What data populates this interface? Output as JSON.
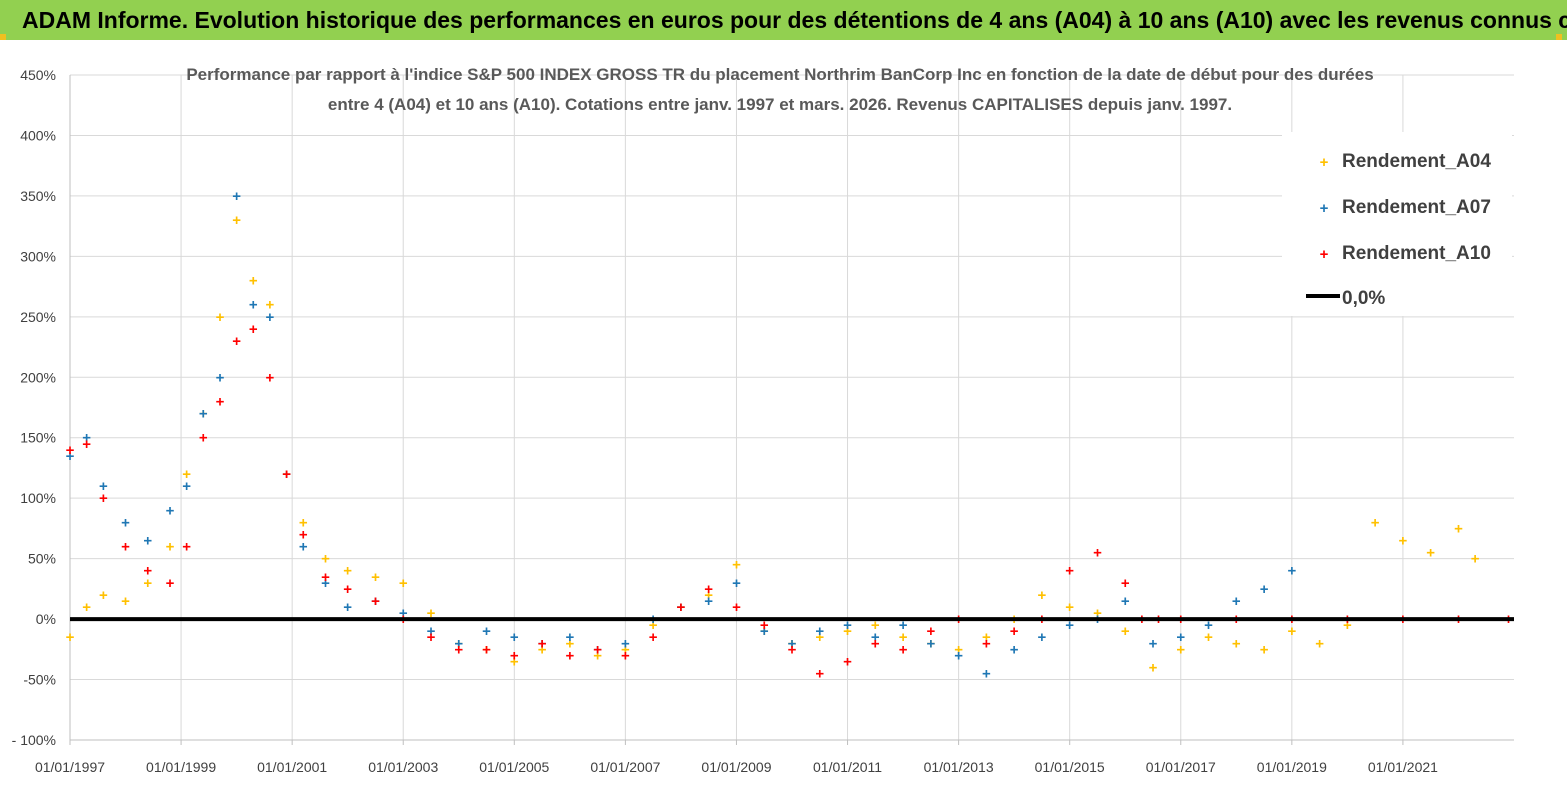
{
  "banner": {
    "title": "ADAM Informe. Evolution historique des performances en euros pour des détentions de 4 ans (A04) à 10 ans (A10) avec les revenus connus capitalisés"
  },
  "colors": {
    "banner_bg": "#92d050",
    "A04": "#ffc000",
    "A07": "#1f77b4",
    "A10": "#ff0000",
    "zero_line": "#000000"
  },
  "chart_data": {
    "type": "scatter",
    "title": [
      "Performance par rapport à l'indice S&P 500 INDEX GROSS TR  du placement Northrim BanCorp Inc en fonction de la date de début pour des durées",
      "entre 4 (A04) et 10 ans (A10). Cotations entre janv. 1997 et mars. 2026. Revenus CAPITALISES depuis janv. 1997."
    ],
    "x_range": [
      1997.0,
      2023.0
    ],
    "ylim": [
      -100,
      450
    ],
    "y_ticks": [
      -100,
      -50,
      0,
      50,
      100,
      150,
      200,
      250,
      300,
      350,
      400,
      450
    ],
    "y_tick_labels": [
      "- 100%",
      "-50%",
      "0%",
      "50%",
      "100%",
      "150%",
      "200%",
      "250%",
      "300%",
      "350%",
      "400%",
      "450%"
    ],
    "x_ticks": [
      1997,
      1999,
      2001,
      2003,
      2005,
      2007,
      2009,
      2011,
      2013,
      2015,
      2017,
      2019,
      2021
    ],
    "x_tick_labels": [
      "01/01/1997",
      "01/01/1999",
      "01/01/2001",
      "01/01/2003",
      "01/01/2005",
      "01/01/2007",
      "01/01/2009",
      "01/01/2011",
      "01/01/2013",
      "01/01/2015",
      "01/01/2017",
      "01/01/2019",
      "01/01/2021"
    ],
    "legend": {
      "position": "top-right",
      "entries": [
        "Rendement_A04",
        "Rendement_A07",
        "Rendement_A10",
        "0,0%"
      ]
    },
    "series": [
      {
        "name": "Rendement_A04",
        "x": [
          1997.0,
          1997.3,
          1997.6,
          1998.0,
          1998.4,
          1998.8,
          1999.1,
          1999.4,
          1999.7,
          2000.0,
          2000.3,
          2000.6,
          2000.9,
          2001.2,
          2001.6,
          2002.0,
          2002.5,
          2003.0,
          2003.5,
          2004.0,
          2004.5,
          2005.0,
          2005.5,
          2006.0,
          2006.5,
          2007.0,
          2007.5,
          2008.0,
          2008.5,
          2009.0,
          2009.5,
          2010.0,
          2010.5,
          2011.0,
          2011.5,
          2012.0,
          2012.5,
          2013.0,
          2013.5,
          2014.0,
          2014.5,
          2015.0,
          2015.5,
          2016.0,
          2016.5,
          2017.0,
          2017.5,
          2018.0,
          2018.5,
          2019.0,
          2019.5,
          2020.0,
          2020.5,
          2021.0,
          2021.5,
          2022.0,
          2022.3
        ],
        "values": [
          -15,
          10,
          20,
          15,
          30,
          60,
          120,
          170,
          250,
          330,
          280,
          260,
          120,
          80,
          50,
          40,
          35,
          30,
          5,
          -20,
          -25,
          -35,
          -25,
          -20,
          -30,
          -25,
          -5,
          10,
          20,
          45,
          -10,
          -20,
          -15,
          -10,
          -5,
          -15,
          -20,
          -25,
          -15,
          0,
          20,
          10,
          5,
          -10,
          -40,
          -25,
          -15,
          -20,
          -25,
          -10,
          -20,
          -5,
          80,
          65,
          55,
          75,
          50
        ]
      },
      {
        "name": "Rendement_A07",
        "x": [
          1997.0,
          1997.3,
          1997.6,
          1998.0,
          1998.4,
          1998.8,
          1999.1,
          1999.4,
          1999.7,
          2000.0,
          2000.3,
          2000.6,
          2000.9,
          2001.2,
          2001.6,
          2002.0,
          2002.5,
          2003.0,
          2003.5,
          2004.0,
          2004.5,
          2005.0,
          2005.5,
          2006.0,
          2006.5,
          2007.0,
          2007.5,
          2008.0,
          2008.5,
          2009.0,
          2009.5,
          2010.0,
          2010.5,
          2011.0,
          2011.5,
          2012.0,
          2012.5,
          2013.0,
          2013.5,
          2014.0,
          2014.5,
          2015.0,
          2015.5,
          2016.0,
          2016.5,
          2017.0,
          2017.5,
          2018.0,
          2018.5,
          2019.0
        ],
        "values": [
          135,
          150,
          110,
          80,
          65,
          90,
          110,
          170,
          200,
          350,
          260,
          250,
          120,
          60,
          30,
          10,
          15,
          5,
          -10,
          -20,
          -10,
          -15,
          -20,
          -15,
          -25,
          -20,
          0,
          10,
          15,
          30,
          -10,
          -20,
          -10,
          -5,
          -15,
          -5,
          -20,
          -30,
          -45,
          -25,
          -15,
          -5,
          0,
          15,
          -20,
          -15,
          -5,
          15,
          25,
          40
        ]
      },
      {
        "name": "Rendement_A10",
        "x": [
          1997.0,
          1997.3,
          1997.6,
          1998.0,
          1998.4,
          1998.8,
          1999.1,
          1999.4,
          1999.7,
          2000.0,
          2000.3,
          2000.6,
          2000.9,
          2001.2,
          2001.6,
          2002.0,
          2002.5,
          2003.0,
          2003.5,
          2004.0,
          2004.5,
          2005.0,
          2005.5,
          2006.0,
          2006.5,
          2007.0,
          2007.5,
          2008.0,
          2008.5,
          2009.0,
          2009.5,
          2010.0,
          2010.5,
          2011.0,
          2011.5,
          2012.0,
          2012.5,
          2013.0,
          2013.5,
          2014.0,
          2014.5,
          2015.0,
          2015.5,
          2016.0,
          2016.3,
          2016.6,
          2017.0,
          2018.0,
          2019.0,
          2020.0,
          2021.0,
          2022.0,
          2022.9
        ],
        "values": [
          140,
          145,
          100,
          60,
          40,
          30,
          60,
          150,
          180,
          230,
          240,
          200,
          120,
          70,
          35,
          25,
          15,
          0,
          -15,
          -25,
          -25,
          -30,
          -20,
          -30,
          -25,
          -30,
          -15,
          10,
          25,
          10,
          -5,
          -25,
          -45,
          -35,
          -20,
          -25,
          -10,
          0,
          -20,
          -10,
          0,
          40,
          55,
          30,
          0,
          0,
          0,
          0,
          0,
          0,
          0,
          0,
          0
        ]
      }
    ]
  }
}
